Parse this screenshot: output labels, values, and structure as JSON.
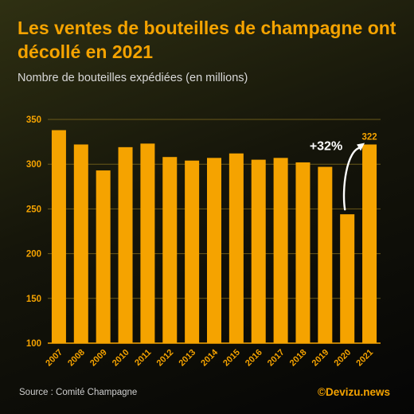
{
  "header": {
    "title": "Les ventes de bouteilles de champagne ont décollé en 2021",
    "subtitle": "Nombre de bouteilles expédiées (en millions)"
  },
  "chart_data": {
    "type": "bar",
    "categories": [
      "2007",
      "2008",
      "2009",
      "2010",
      "2011",
      "2012",
      "2013",
      "2014",
      "2015",
      "2016",
      "2017",
      "2018",
      "2019",
      "2020",
      "2021"
    ],
    "values": [
      338,
      322,
      293,
      319,
      323,
      308,
      304,
      307,
      312,
      305,
      307,
      302,
      297,
      244,
      322
    ],
    "ylim": [
      100,
      350
    ],
    "yticks": [
      100,
      150,
      200,
      250,
      300,
      350
    ],
    "grid": true,
    "bar_color": "#f5a300",
    "annotations": [
      {
        "text": "+32%",
        "target": "2020→2021"
      },
      {
        "text": "322",
        "target": "2021"
      }
    ]
  },
  "footer": {
    "source": "Source : Comité Champagne",
    "credit": "©Devizu.news"
  }
}
